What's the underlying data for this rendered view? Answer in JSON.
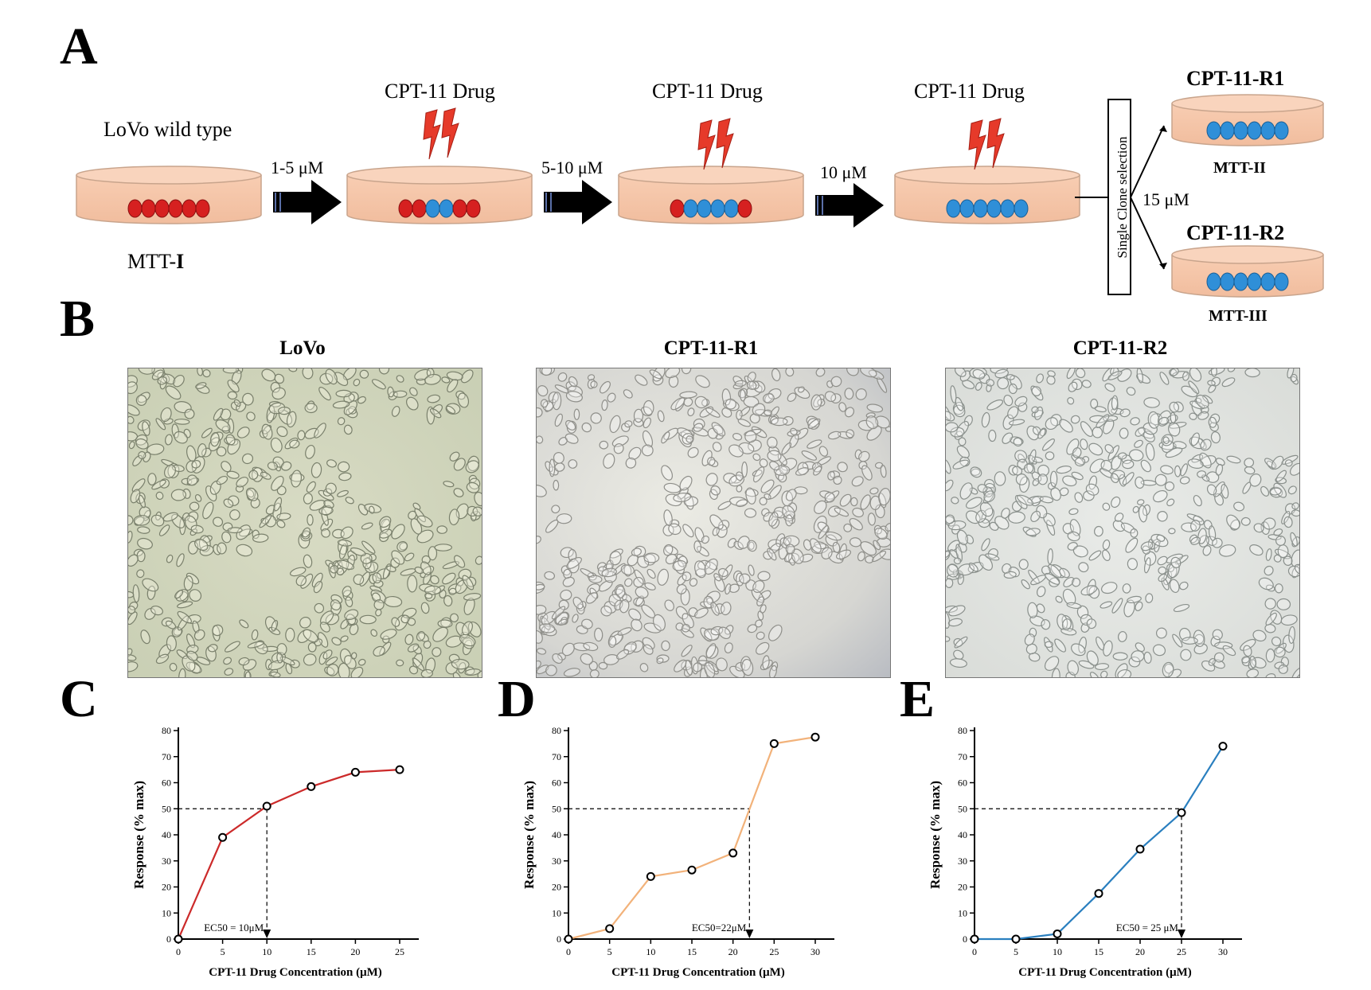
{
  "panels": {
    "a": "A",
    "b": "B",
    "c": "C",
    "d": "D",
    "e": "E"
  },
  "schematic": {
    "wild_type_label": "LoVo wild type",
    "mtt_i": "MTT-",
    "mtt_i_roman": "I",
    "drug_label": "CPT-11 Drug",
    "step1": "1-5 μM",
    "step2": "5-10 μM",
    "step3": "10 μM",
    "selection": "Single Clone selection",
    "final_conc": "15 μM",
    "r1": "CPT-11-R1",
    "r2": "CPT-11-R2",
    "mtt_ii": "MTT-II",
    "mtt_iii": "MTT-III",
    "colors": {
      "dish": "#f6c9ad",
      "red_cell": "#d62020",
      "blue_cell": "#2f8fd8",
      "bolt": "#e63a2a"
    }
  },
  "micrographs": [
    "LoVo",
    "CPT-11-R1",
    "CPT-11-R2"
  ],
  "chart_data": [
    {
      "type": "line",
      "x": [
        0,
        5,
        10,
        15,
        20,
        25
      ],
      "y": [
        0,
        39,
        51,
        58.5,
        64,
        65
      ],
      "xlim": [
        0,
        25
      ],
      "ylim": [
        0,
        80
      ],
      "xticks": [
        0,
        5,
        10,
        15,
        20,
        25
      ],
      "yticks": [
        0,
        10,
        20,
        30,
        40,
        50,
        60,
        70,
        80
      ],
      "xlabel": "CPT-11 Drug Concentration (μM)",
      "ylabel": "Response (% max)",
      "ec50": 10,
      "annotation": "EC50 = 10μM",
      "color": "#cc2a2a"
    },
    {
      "type": "line",
      "x": [
        0,
        5,
        10,
        15,
        20,
        25,
        30
      ],
      "y": [
        0,
        4,
        24,
        26.5,
        33,
        75,
        77.5
      ],
      "xlim": [
        0,
        30
      ],
      "ylim": [
        0,
        80
      ],
      "xticks": [
        0,
        5,
        10,
        15,
        20,
        25,
        30
      ],
      "yticks": [
        0,
        10,
        20,
        30,
        40,
        50,
        60,
        70,
        80
      ],
      "xlabel": "CPT-11 Drug Concentration (μM)",
      "ylabel": "Response (% max)",
      "ec50": 22,
      "annotation": "EC50=22μM",
      "color": "#f2b27a"
    },
    {
      "type": "line",
      "x": [
        0,
        5,
        10,
        15,
        20,
        25,
        30
      ],
      "y": [
        0,
        0,
        2,
        17.5,
        34.5,
        48.5,
        74
      ],
      "xlim": [
        0,
        30
      ],
      "ylim": [
        0,
        80
      ],
      "xticks": [
        0,
        5,
        10,
        15,
        20,
        25,
        30
      ],
      "yticks": [
        0,
        10,
        20,
        30,
        40,
        50,
        60,
        70,
        80
      ],
      "xlabel": "CPT-11 Drug Concentration (μM)",
      "ylabel": "Response (% max)",
      "ec50": 25,
      "annotation": "EC50 = 25 μM",
      "color": "#2a7fbf"
    }
  ]
}
